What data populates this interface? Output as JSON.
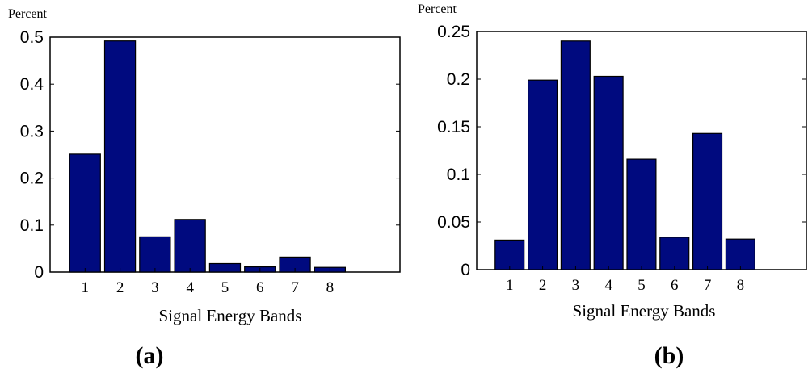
{
  "colors": {
    "bar_fill": "#000a7f",
    "bar_stroke": "#000000",
    "axis": "#000000",
    "background": "#ffffff"
  },
  "chart_data": [
    {
      "type": "bar",
      "panel_label": "(a)",
      "title": "",
      "ylabel": "Percent",
      "xlabel": "Signal Energy Bands",
      "categories": [
        "1",
        "2",
        "3",
        "4",
        "5",
        "6",
        "7",
        "8"
      ],
      "values": [
        0.251,
        0.492,
        0.075,
        0.112,
        0.018,
        0.011,
        0.032,
        0.01
      ],
      "xlim": [
        0,
        10
      ],
      "ylim": [
        0,
        0.5
      ],
      "yticks": [
        0,
        0.1,
        0.2,
        0.3,
        0.4,
        0.5
      ],
      "ytick_labels": [
        "0",
        "0.1",
        "0.2",
        "0.3",
        "0.4",
        "0.5"
      ],
      "grid": false,
      "legend": "none"
    },
    {
      "type": "bar",
      "panel_label": "(b)",
      "title": "",
      "ylabel": "Percent",
      "xlabel": "Signal Energy Bands",
      "categories": [
        "1",
        "2",
        "3",
        "4",
        "5",
        "6",
        "7",
        "8"
      ],
      "values": [
        0.031,
        0.199,
        0.24,
        0.203,
        0.116,
        0.034,
        0.143,
        0.032
      ],
      "xlim": [
        0,
        10
      ],
      "ylim": [
        0,
        0.25
      ],
      "yticks": [
        0,
        0.05,
        0.1,
        0.15,
        0.2,
        0.25
      ],
      "ytick_labels": [
        "0",
        "0.05",
        "0.1",
        "0.15",
        "0.2",
        "0.25"
      ],
      "grid": false,
      "legend": "none"
    }
  ]
}
